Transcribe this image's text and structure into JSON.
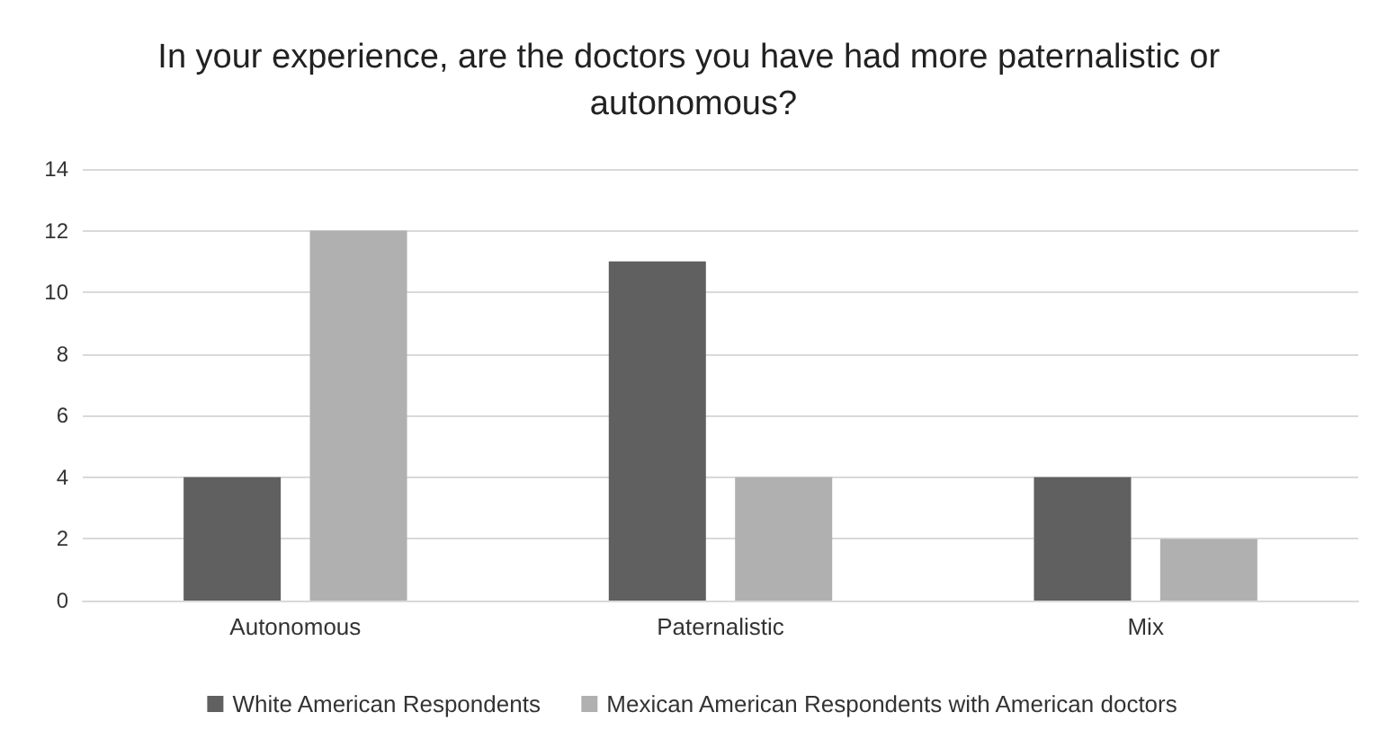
{
  "chart_data": {
    "type": "bar",
    "title": "In your experience, are the doctors you have had more paternalistic or autonomous?",
    "categories": [
      "Autonomous",
      "Paternalistic",
      "Mix"
    ],
    "series": [
      {
        "name": "White American Respondents",
        "color": "#606060",
        "values": [
          4,
          11,
          4
        ]
      },
      {
        "name": "Mexican American Respondents with American doctors",
        "color": "#b0b0b1",
        "values": [
          12,
          4,
          2
        ]
      }
    ],
    "ylim": [
      0,
      14
    ],
    "yticks": [
      0,
      2,
      4,
      6,
      8,
      10,
      12,
      14
    ],
    "grid": "y",
    "legend": "bottom"
  }
}
